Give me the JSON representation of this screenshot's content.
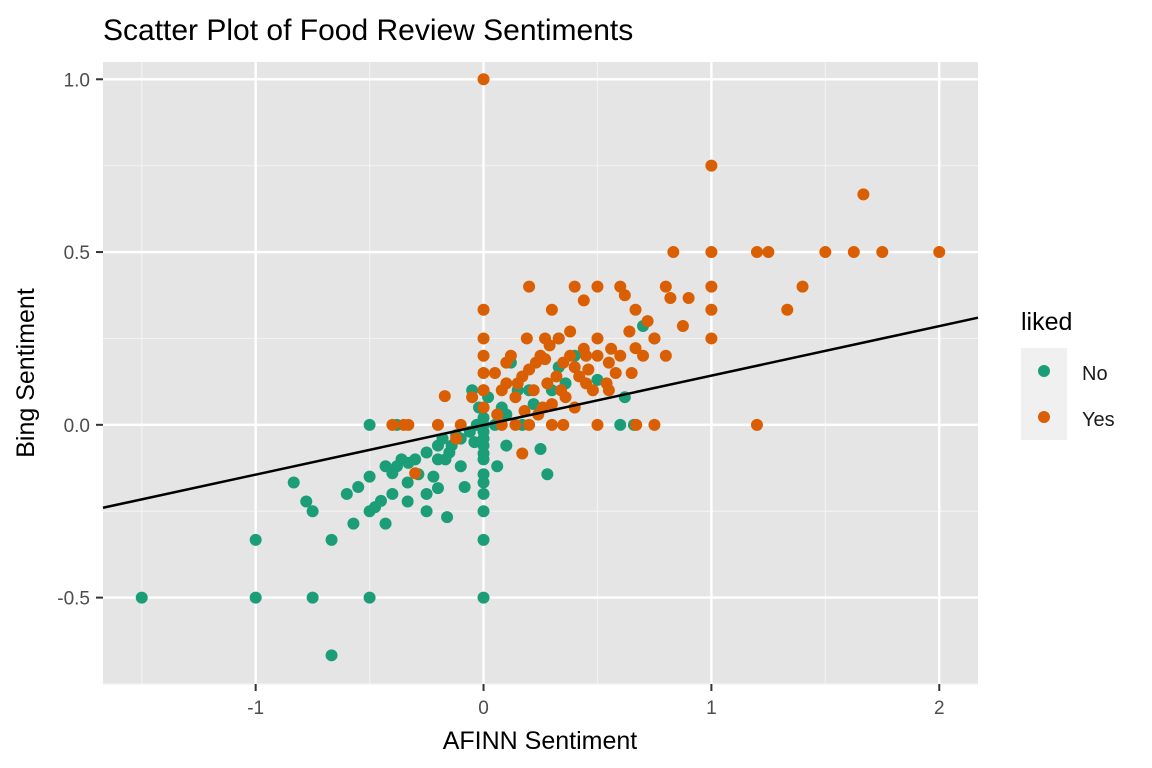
{
  "chart_data": {
    "type": "scatter",
    "title": "Scatter Plot of Food Review Sentiments",
    "xlabel": "AFINN Sentiment",
    "ylabel": "Bing Sentiment",
    "xlim": [
      -1.67,
      2.17
    ],
    "ylim": [
      -0.75,
      1.05
    ],
    "x_ticks": [
      -1,
      0,
      1,
      2
    ],
    "x_tick_labels": [
      "-1",
      "0",
      "1",
      "2"
    ],
    "y_ticks": [
      -0.5,
      0.0,
      0.5,
      1.0
    ],
    "y_tick_labels": [
      "-0.5",
      "0.0",
      "0.5",
      "1.0"
    ],
    "grid": true,
    "legend": {
      "title": "liked",
      "position": "right",
      "entries": [
        {
          "label": "No",
          "color": "#1b9e77"
        },
        {
          "label": "Yes",
          "color": "#d95f02"
        }
      ]
    },
    "trend_line": {
      "x": [
        -1.67,
        2.17
      ],
      "y": [
        -0.24,
        0.31
      ],
      "color": "#000000"
    },
    "series": [
      {
        "name": "No",
        "color": "#1b9e77",
        "points": [
          [
            -1.5,
            -0.5
          ],
          [
            -1.0,
            -0.5
          ],
          [
            -1.0,
            -0.333
          ],
          [
            -0.75,
            -0.5
          ],
          [
            -0.667,
            -0.667
          ],
          [
            -0.5,
            -0.5
          ],
          [
            -0.833,
            -0.167
          ],
          [
            -0.778,
            -0.222
          ],
          [
            -0.75,
            -0.25
          ],
          [
            -0.667,
            -0.333
          ],
          [
            -0.6,
            -0.2
          ],
          [
            -0.571,
            -0.286
          ],
          [
            -0.55,
            -0.18
          ],
          [
            -0.5,
            -0.25
          ],
          [
            -0.5,
            -0.15
          ],
          [
            -0.5,
            0.0
          ],
          [
            -0.476,
            -0.238
          ],
          [
            -0.45,
            -0.22
          ],
          [
            -0.43,
            -0.286
          ],
          [
            -0.43,
            -0.12
          ],
          [
            -0.4,
            -0.2
          ],
          [
            -0.4,
            -0.14
          ],
          [
            -0.38,
            -0.12
          ],
          [
            -0.36,
            -0.1
          ],
          [
            -0.333,
            -0.222
          ],
          [
            -0.333,
            -0.167
          ],
          [
            -0.33,
            -0.11
          ],
          [
            -0.3,
            -0.1
          ],
          [
            -0.286,
            -0.143
          ],
          [
            -0.25,
            -0.25
          ],
          [
            -0.25,
            -0.2
          ],
          [
            -0.25,
            -0.08
          ],
          [
            -0.22,
            -0.15
          ],
          [
            -0.2,
            -0.183
          ],
          [
            -0.2,
            -0.1
          ],
          [
            -0.2,
            -0.06
          ],
          [
            -0.18,
            -0.04
          ],
          [
            -0.167,
            -0.1
          ],
          [
            -0.16,
            -0.267
          ],
          [
            -0.15,
            -0.08
          ],
          [
            -0.14,
            -0.06
          ],
          [
            -0.12,
            -0.03
          ],
          [
            -0.1,
            -0.12
          ],
          [
            -0.1,
            -0.04
          ],
          [
            -0.083,
            -0.18
          ],
          [
            -0.06,
            -0.02
          ],
          [
            -0.05,
            0.1
          ],
          [
            -0.04,
            -0.05
          ],
          [
            -0.03,
            0.0
          ],
          [
            -0.02,
            0.05
          ],
          [
            0.0,
            -0.5
          ],
          [
            0.0,
            -0.333
          ],
          [
            0.0,
            -0.25
          ],
          [
            0.0,
            -0.2
          ],
          [
            0.0,
            -0.167
          ],
          [
            0.0,
            -0.143
          ],
          [
            0.0,
            -0.1
          ],
          [
            0.0,
            -0.083
          ],
          [
            0.0,
            -0.06
          ],
          [
            0.0,
            -0.04
          ],
          [
            0.0,
            -0.02
          ],
          [
            0.0,
            0.0
          ],
          [
            0.0,
            0.02
          ],
          [
            0.0,
            0.05
          ],
          [
            0.0,
            0.1
          ],
          [
            0.02,
            0.08
          ],
          [
            0.05,
            0.0
          ],
          [
            0.06,
            -0.12
          ],
          [
            0.08,
            0.05
          ],
          [
            0.1,
            -0.06
          ],
          [
            0.1,
            0.03
          ],
          [
            0.12,
            0.18
          ],
          [
            0.15,
            0.1
          ],
          [
            0.17,
            0.0
          ],
          [
            0.2,
            0.1
          ],
          [
            0.22,
            0.06
          ],
          [
            0.25,
            -0.07
          ],
          [
            0.28,
            -0.143
          ],
          [
            0.3,
            0.1
          ],
          [
            0.33,
            0.167
          ],
          [
            0.33,
            0.25
          ],
          [
            0.36,
            0.12
          ],
          [
            0.4,
            0.2
          ],
          [
            0.5,
            0.13
          ],
          [
            0.6,
            0.0
          ],
          [
            0.62,
            0.08
          ],
          [
            0.7,
            0.286
          ],
          [
            0.75,
            0.25
          ],
          [
            0.66,
            0.0
          ],
          [
            -0.38,
            0.0
          ]
        ]
      },
      {
        "name": "Yes",
        "color": "#d95f02",
        "points": [
          [
            0.0,
            1.0
          ],
          [
            1.0,
            0.75
          ],
          [
            1.667,
            0.667
          ],
          [
            2.0,
            0.5
          ],
          [
            1.75,
            0.5
          ],
          [
            1.625,
            0.5
          ],
          [
            1.5,
            0.5
          ],
          [
            1.25,
            0.5
          ],
          [
            1.2,
            0.5
          ],
          [
            1.0,
            0.5
          ],
          [
            0.833,
            0.5
          ],
          [
            1.4,
            0.4
          ],
          [
            1.333,
            0.333
          ],
          [
            1.0,
            0.4
          ],
          [
            1.0,
            0.333
          ],
          [
            1.0,
            0.25
          ],
          [
            0.875,
            0.286
          ],
          [
            0.9,
            0.367
          ],
          [
            0.8,
            0.4
          ],
          [
            0.82,
            0.367
          ],
          [
            0.75,
            0.25
          ],
          [
            0.8,
            0.2
          ],
          [
            0.72,
            0.3
          ],
          [
            0.667,
            0.333
          ],
          [
            0.6,
            0.4
          ],
          [
            0.62,
            0.375
          ],
          [
            0.64,
            0.27
          ],
          [
            0.667,
            0.222
          ],
          [
            0.6,
            0.2
          ],
          [
            0.55,
            0.18
          ],
          [
            0.5,
            0.4
          ],
          [
            0.44,
            0.36
          ],
          [
            0.4,
            0.4
          ],
          [
            0.2,
            0.4
          ],
          [
            0.5,
            0.25
          ],
          [
            0.45,
            0.2
          ],
          [
            0.4,
            0.167
          ],
          [
            0.38,
            0.27
          ],
          [
            0.33,
            0.25
          ],
          [
            0.3,
            0.333
          ],
          [
            0.27,
            0.25
          ],
          [
            0.25,
            0.2
          ],
          [
            0.23,
            0.18
          ],
          [
            0.2,
            0.16
          ],
          [
            0.17,
            0.14
          ],
          [
            0.15,
            0.12
          ],
          [
            0.12,
            0.2
          ],
          [
            0.1,
            0.18
          ],
          [
            0.08,
            0.1
          ],
          [
            0.05,
            0.15
          ],
          [
            0.0,
            0.333
          ],
          [
            0.0,
            0.25
          ],
          [
            0.0,
            0.2
          ],
          [
            0.0,
            0.15
          ],
          [
            0.0,
            0.1
          ],
          [
            0.0,
            0.05
          ],
          [
            -0.05,
            0.08
          ],
          [
            -0.17,
            0.083
          ],
          [
            -0.1,
            0.0
          ],
          [
            -0.12,
            -0.04
          ],
          [
            -0.2,
            0.0
          ],
          [
            -0.3,
            -0.14
          ],
          [
            -0.33,
            0.0
          ],
          [
            -0.35,
            0.0
          ],
          [
            -0.4,
            0.0
          ],
          [
            0.3,
            0.0
          ],
          [
            0.35,
            0.0
          ],
          [
            0.5,
            0.0
          ],
          [
            0.67,
            0.0
          ],
          [
            0.75,
            0.0
          ],
          [
            1.2,
            0.0
          ],
          [
            0.17,
            -0.083
          ],
          [
            0.58,
            0.15
          ],
          [
            0.54,
            0.12
          ],
          [
            0.48,
            0.1
          ],
          [
            0.42,
            0.14
          ],
          [
            0.36,
            0.08
          ],
          [
            0.3,
            0.06
          ],
          [
            0.26,
            0.05
          ],
          [
            0.5,
            0.2
          ],
          [
            0.44,
            0.22
          ],
          [
            0.35,
            0.18
          ],
          [
            0.28,
            0.12
          ],
          [
            0.22,
            0.1
          ],
          [
            0.18,
            0.04
          ],
          [
            0.14,
            0.08
          ],
          [
            0.1,
            0.12
          ],
          [
            0.06,
            0.03
          ],
          [
            0.7,
            0.2
          ],
          [
            0.65,
            0.15
          ],
          [
            0.55,
            0.1
          ],
          [
            0.45,
            0.12
          ],
          [
            0.4,
            0.05
          ],
          [
            0.34,
            0.1
          ],
          [
            0.24,
            0.03
          ],
          [
            0.2,
            0.0
          ],
          [
            0.14,
            0.0
          ],
          [
            0.08,
            0.0
          ],
          [
            0.56,
            0.22
          ],
          [
            0.46,
            0.16
          ],
          [
            0.38,
            0.2
          ],
          [
            0.32,
            0.14
          ],
          [
            0.27,
            0.19
          ],
          [
            0.19,
            0.25
          ],
          [
            0.29,
            0.23
          ]
        ]
      }
    ]
  }
}
